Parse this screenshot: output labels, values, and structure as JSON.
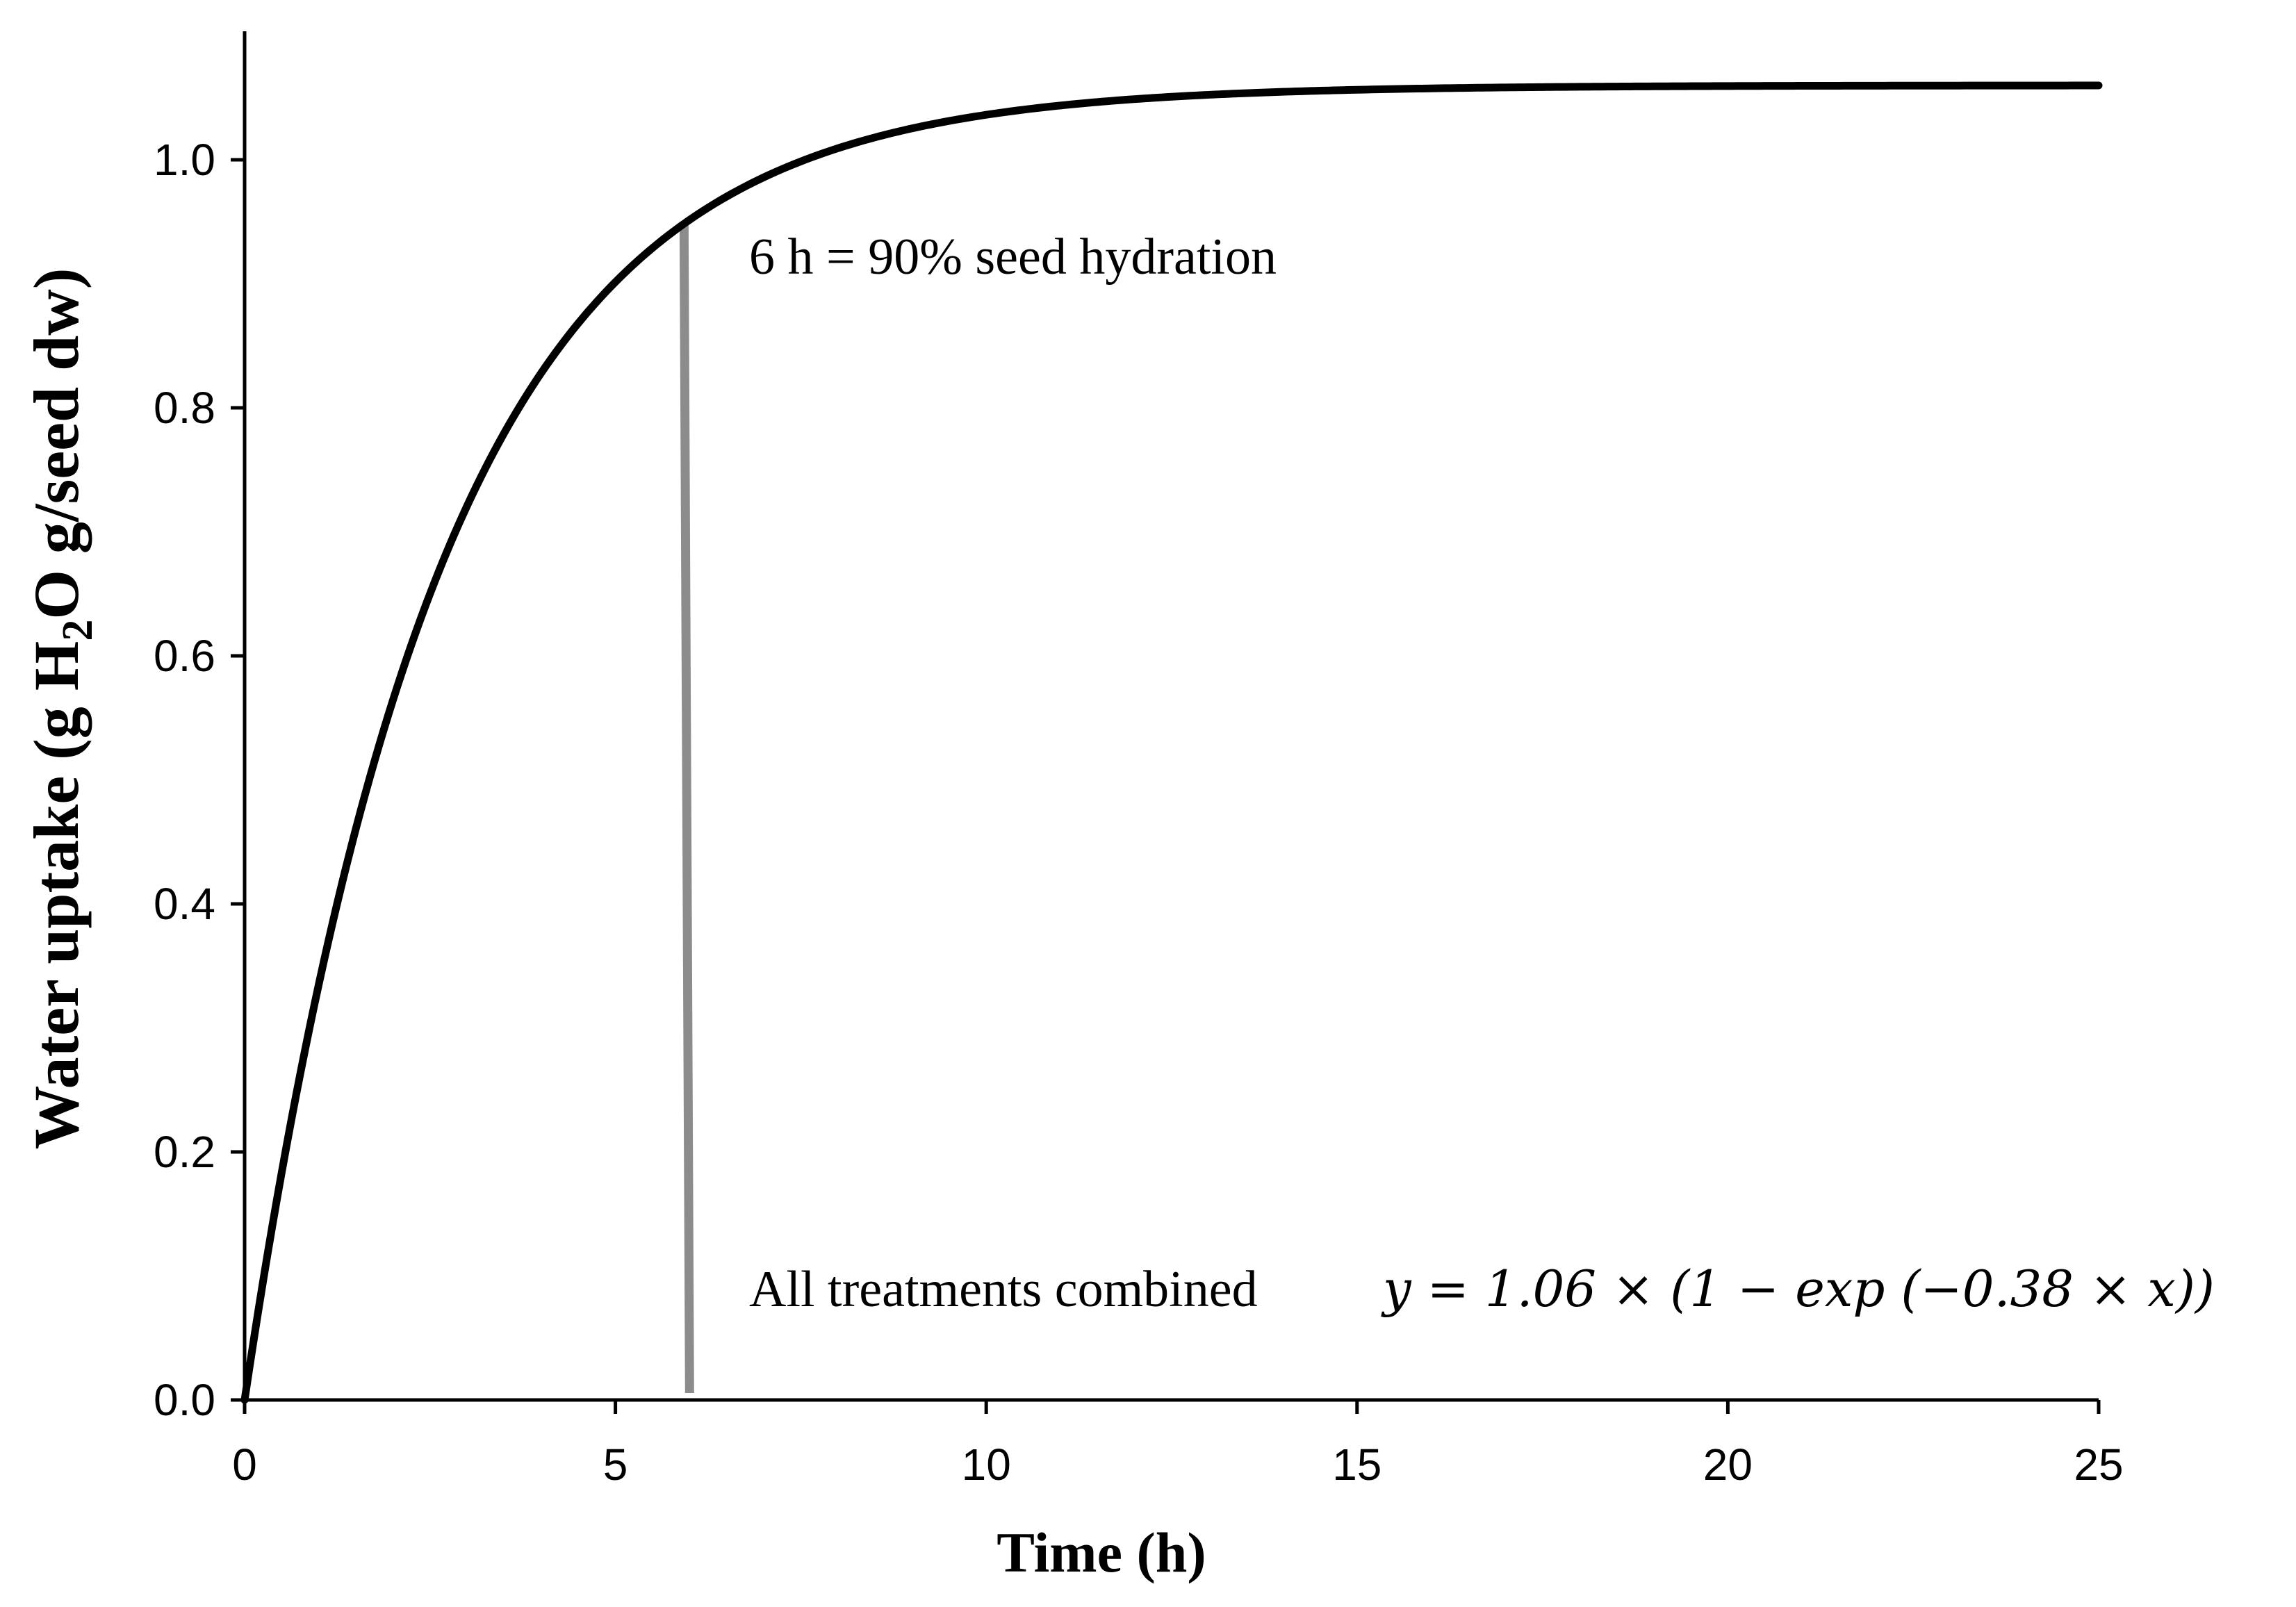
{
  "chart_data": {
    "type": "line",
    "title": "",
    "xlabel": "Time (h)",
    "ylabel": "Water uptake (g H2O g/seed dw)",
    "ylabel_parts": {
      "pre": "Water uptake (g H",
      "sub": "2",
      "post": "O g/seed dw)"
    },
    "xlim": [
      0,
      25
    ],
    "ylim": [
      0,
      1.1
    ],
    "x_ticks": [
      0,
      5,
      10,
      15,
      20,
      25
    ],
    "x_tick_labels": [
      "0",
      "5",
      "10",
      "15",
      "20",
      "25"
    ],
    "y_ticks": [
      0.0,
      0.2,
      0.4,
      0.6,
      0.8,
      1.0
    ],
    "y_tick_labels": [
      "0.0",
      "0.2",
      "0.4",
      "0.6",
      "0.8",
      "1.0"
    ],
    "grid": false,
    "model": {
      "a": 1.06,
      "k": 0.38,
      "formula": "y = 1.06 × (1 − exp(−0.38 × x))"
    },
    "series": [
      {
        "name": "All treatments combined",
        "x": [
          0,
          0.5,
          1,
          1.5,
          2,
          2.5,
          3,
          3.5,
          4,
          4.5,
          5,
          5.5,
          6,
          7,
          8,
          9,
          10,
          11,
          12,
          13,
          14,
          15,
          16,
          18,
          20,
          22,
          25
        ],
        "y": [
          0.0,
          0.18,
          0.33,
          0.46,
          0.56,
          0.65,
          0.72,
          0.78,
          0.83,
          0.87,
          0.9,
          0.93,
          0.95,
          0.99,
          1.01,
          1.03,
          1.04,
          1.05,
          1.05,
          1.055,
          1.057,
          1.058,
          1.059,
          1.06,
          1.06,
          1.06,
          1.06
        ]
      }
    ],
    "vertical_marker": {
      "x": 6,
      "y_top": 0.95,
      "label": "6 h = 90% seed hydration"
    },
    "annotations": {
      "hydration_label": "6 h = 90% seed hydration",
      "combined_label": "All treatments combined",
      "equation": "y = 1.06 × (1 − exp (−0.38 × x))"
    }
  }
}
